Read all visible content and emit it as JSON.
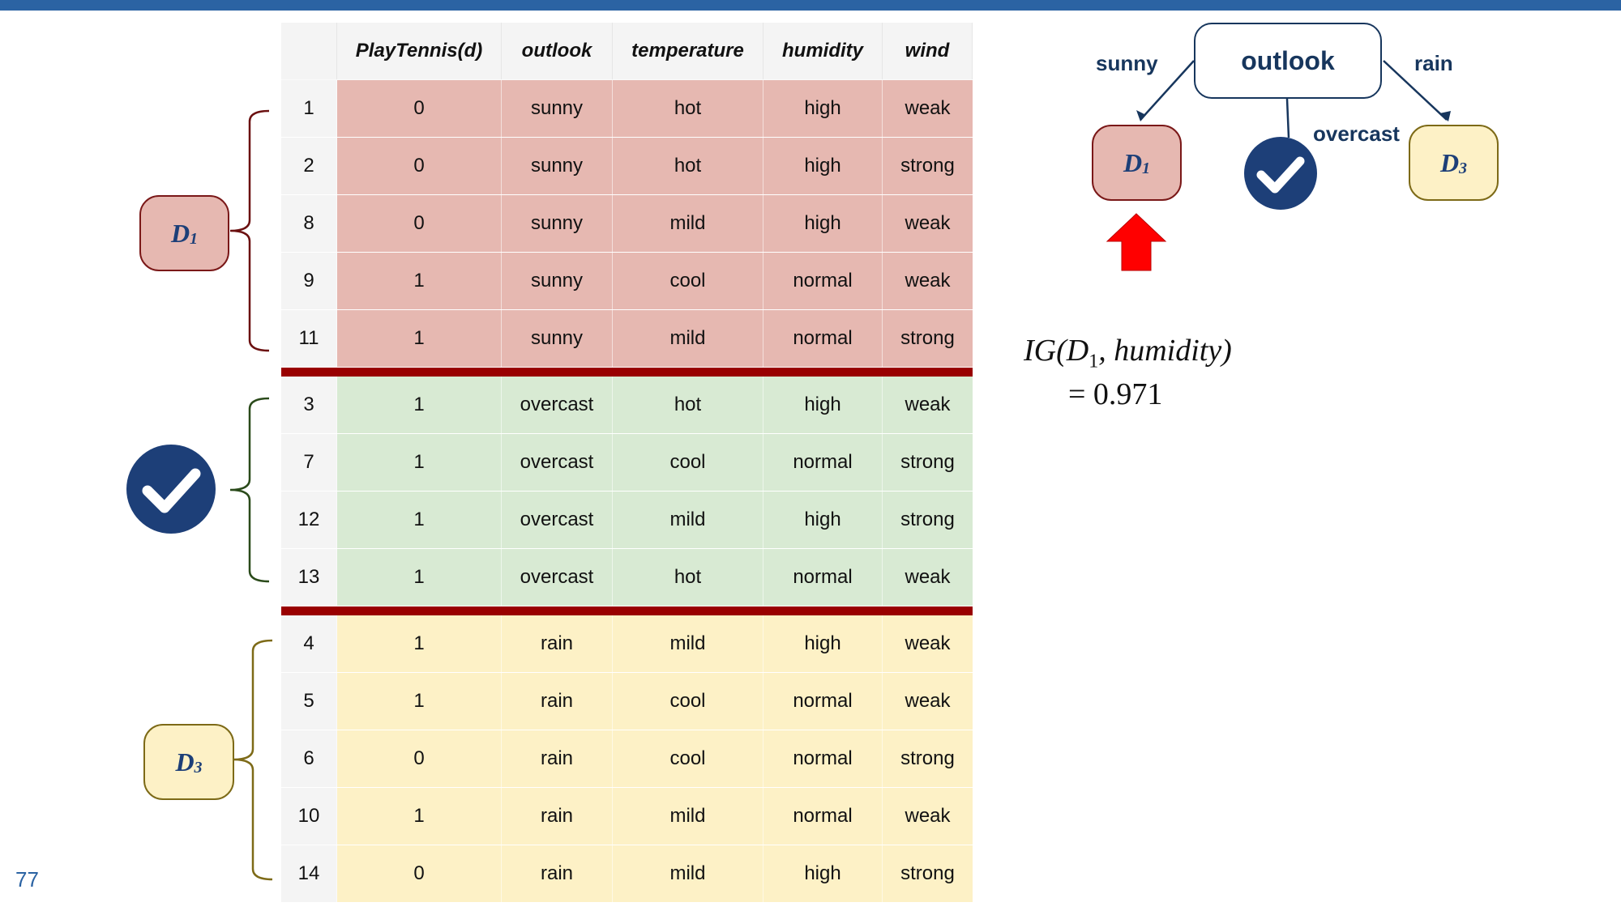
{
  "table": {
    "headers": [
      "",
      "PlayTennis(d)",
      "outlook",
      "temperature",
      "humidity",
      "wind"
    ],
    "groups": [
      {
        "rows": [
          [
            "1",
            "0",
            "sunny",
            "hot",
            "high",
            "weak"
          ],
          [
            "2",
            "0",
            "sunny",
            "hot",
            "high",
            "strong"
          ],
          [
            "8",
            "0",
            "sunny",
            "mild",
            "high",
            "weak"
          ],
          [
            "9",
            "1",
            "sunny",
            "cool",
            "normal",
            "weak"
          ],
          [
            "11",
            "1",
            "sunny",
            "mild",
            "normal",
            "strong"
          ]
        ]
      },
      {
        "rows": [
          [
            "3",
            "1",
            "overcast",
            "hot",
            "high",
            "weak"
          ],
          [
            "7",
            "1",
            "overcast",
            "cool",
            "normal",
            "strong"
          ],
          [
            "12",
            "1",
            "overcast",
            "mild",
            "high",
            "strong"
          ],
          [
            "13",
            "1",
            "overcast",
            "hot",
            "normal",
            "weak"
          ]
        ]
      },
      {
        "rows": [
          [
            "4",
            "1",
            "rain",
            "mild",
            "high",
            "weak"
          ],
          [
            "5",
            "1",
            "rain",
            "cool",
            "normal",
            "weak"
          ],
          [
            "6",
            "0",
            "rain",
            "cool",
            "normal",
            "strong"
          ],
          [
            "10",
            "1",
            "rain",
            "mild",
            "normal",
            "weak"
          ],
          [
            "14",
            "0",
            "rain",
            "mild",
            "high",
            "strong"
          ]
        ]
      }
    ]
  },
  "left_labels": {
    "d1": "D",
    "d1_sub": "1",
    "d3": "D",
    "d3_sub": "3"
  },
  "tree": {
    "root": "outlook",
    "edge_sunny": "sunny",
    "edge_overcast": "overcast",
    "edge_rain": "rain",
    "leaf_left": "D",
    "leaf_left_sub": "1",
    "leaf_right": "D",
    "leaf_right_sub": "3"
  },
  "formula": {
    "line1": "IG(D",
    "sub": "1",
    "line1_rest": ", humidity)",
    "line2": "= 0.971"
  },
  "page_number": "77",
  "colors": {
    "topbar": "#2b63a3",
    "group1": "#e6b8b1",
    "group2": "#d8ead3",
    "group3": "#fdf1c6",
    "separator": "#990000",
    "check": "#1d3f78",
    "arrow": "#ff0000"
  }
}
